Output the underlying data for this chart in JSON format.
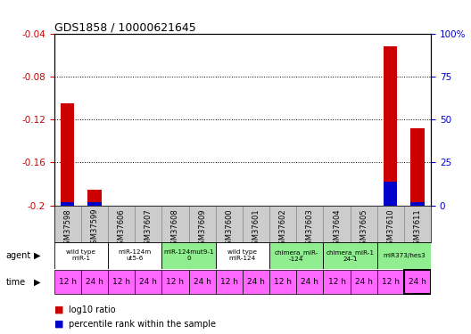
{
  "title": "GDS1858 / 10000621645",
  "samples": [
    "GSM37598",
    "GSM37599",
    "GSM37606",
    "GSM37607",
    "GSM37608",
    "GSM37609",
    "GSM37600",
    "GSM37601",
    "GSM37602",
    "GSM37603",
    "GSM37604",
    "GSM37605",
    "GSM37610",
    "GSM37611"
  ],
  "log10_ratio": [
    -0.105,
    -0.185,
    null,
    null,
    null,
    null,
    null,
    null,
    null,
    null,
    null,
    null,
    -0.052,
    -0.128
  ],
  "percentile_rank": [
    2,
    2,
    null,
    null,
    null,
    null,
    null,
    null,
    null,
    null,
    null,
    null,
    14,
    2
  ],
  "ylim_left": [
    -0.2,
    -0.04
  ],
  "ylim_right": [
    0,
    100
  ],
  "yticks_left": [
    -0.2,
    -0.16,
    -0.12,
    -0.08,
    -0.04
  ],
  "yticks_right": [
    0,
    25,
    50,
    75,
    100
  ],
  "ytick_labels_left": [
    "-0.2",
    "-0.16",
    "-0.12",
    "-0.08",
    "-0.04"
  ],
  "ytick_labels_right": [
    "0",
    "25",
    "50",
    "75",
    "100%"
  ],
  "agent_groups": [
    {
      "label": "wild type\nmiR-1",
      "cols": [
        0,
        1
      ],
      "color": "#ffffff"
    },
    {
      "label": "miR-124m\nut5-6",
      "cols": [
        2,
        3
      ],
      "color": "#ffffff"
    },
    {
      "label": "miR-124mut9-1\n0",
      "cols": [
        4,
        5
      ],
      "color": "#90EE90"
    },
    {
      "label": "wild type\nmiR-124",
      "cols": [
        6,
        7
      ],
      "color": "#ffffff"
    },
    {
      "label": "chimera_miR-\n-124",
      "cols": [
        8,
        9
      ],
      "color": "#90EE90"
    },
    {
      "label": "chimera_miR-1\n24-1",
      "cols": [
        10,
        11
      ],
      "color": "#90EE90"
    },
    {
      "label": "miR373/hes3",
      "cols": [
        12,
        13
      ],
      "color": "#90EE90"
    }
  ],
  "time_labels": [
    "12 h",
    "24 h",
    "12 h",
    "24 h",
    "12 h",
    "24 h",
    "12 h",
    "24 h",
    "12 h",
    "24 h",
    "12 h",
    "24 h",
    "12 h",
    "24 h"
  ],
  "time_color": "#FF66FF",
  "bar_color_red": "#cc0000",
  "bar_color_blue": "#0000cc",
  "tick_color_left": "#cc0000",
  "tick_color_right": "#0000cc",
  "sample_header_color": "#cccccc",
  "legend_square_red": "#cc0000",
  "legend_square_blue": "#0000cc",
  "bar_width": 0.5
}
